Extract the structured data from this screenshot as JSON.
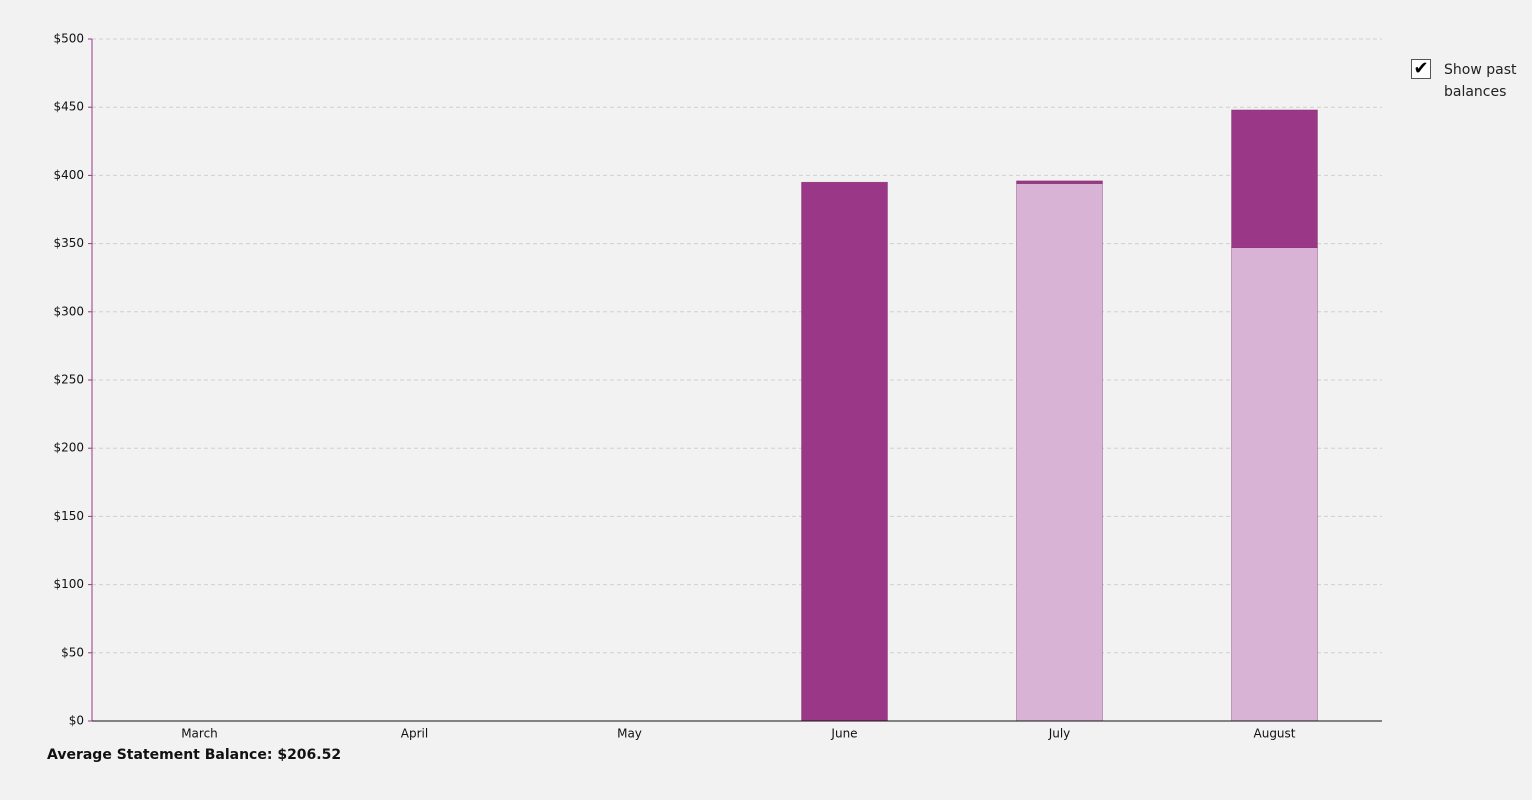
{
  "chart_data": {
    "type": "stacked_bar",
    "categories": [
      "March",
      "April",
      "May",
      "June",
      "July",
      "August"
    ],
    "series": [
      {
        "color": "#d9b3d6",
        "values": [
          null,
          null,
          null,
          0,
          394,
          347
        ]
      },
      {
        "color": "#9a3787",
        "values": [
          null,
          null,
          null,
          395,
          2,
          101
        ]
      }
    ],
    "ylim": [
      0,
      500
    ],
    "yticks": [
      {
        "value": 0,
        "label": "$0"
      },
      {
        "value": 50,
        "label": "$50"
      },
      {
        "value": 100,
        "label": "$100"
      },
      {
        "value": 150,
        "label": "$150"
      },
      {
        "value": 200,
        "label": "$200"
      },
      {
        "value": 250,
        "label": "$250"
      },
      {
        "value": 300,
        "label": "$300"
      },
      {
        "value": 350,
        "label": "$350"
      },
      {
        "value": 400,
        "label": "$400"
      },
      {
        "value": 450,
        "label": "$450"
      },
      {
        "value": 500,
        "label": "$500"
      }
    ],
    "grid": true,
    "footer": "Average Statement Balance: $206.52",
    "checkbox": {
      "label": "Show past balances",
      "checked": true
    }
  }
}
